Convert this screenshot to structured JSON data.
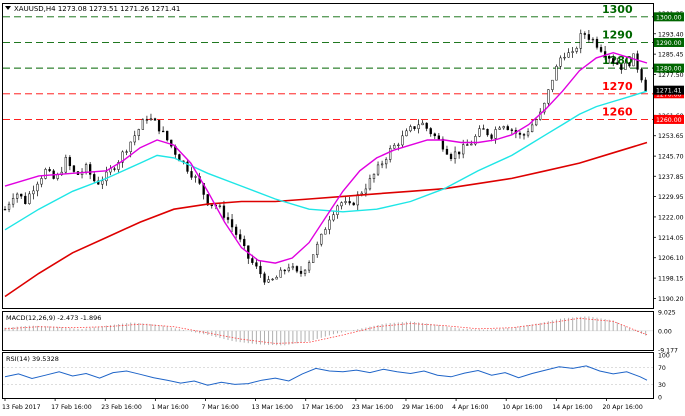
{
  "header": {
    "symbol_info": "XAUUSD,H4  1273.08 1273.51 1271.26 1271.41"
  },
  "colors": {
    "candle": "#000000",
    "ma_magenta": "#e000e0",
    "ma_cyan": "#1ee6e6",
    "ma_red": "#dd0000",
    "level_green": "#006600",
    "level_red": "#ff0000",
    "macd_hist": "#b0b0b0",
    "macd_signal": "#ff4040",
    "rsi_line": "#1e64c8",
    "price_badge": "#000000",
    "current_badge": "#ff0000"
  },
  "chart_data": [
    {
      "type": "candlestick",
      "title": "XAUUSD,H4",
      "price_axis_ticks": [
        "1301.25",
        "1293.40",
        "1285.45",
        "1277.50",
        "1269.55",
        "1261.60",
        "1253.65",
        "1245.70",
        "1237.85",
        "1229.95",
        "1222.00",
        "1214.05",
        "1206.10",
        "1198.15",
        "1190.20"
      ],
      "ylim": [
        1186.5,
        1305.0
      ],
      "time_axis_labels": [
        "13 Feb 2017",
        "17 Feb 16:00",
        "23 Feb 16:00",
        "1 Mar 16:00",
        "7 Mar 16:00",
        "13 Mar 16:00",
        "17 Mar 16:00",
        "23 Mar 16:00",
        "29 Mar 16:00",
        "4 Apr 16:00",
        "10 Apr 16:00",
        "14 Apr 16:00",
        "20 Apr 16:00"
      ],
      "levels": [
        {
          "label": "1300",
          "badge": "1300.00",
          "value": 1300.0,
          "color": "green"
        },
        {
          "label": "1290",
          "badge": "1290.00",
          "value": 1290.0,
          "color": "green"
        },
        {
          "label": "1280",
          "badge": "1280.00",
          "value": 1280.0,
          "color": "green"
        },
        {
          "label": "1270",
          "badge": "1270.00",
          "value": 1270.0,
          "color": "red"
        },
        {
          "label": "1260",
          "badge": "1260.00",
          "value": 1260.0,
          "color": "red"
        }
      ],
      "current_price": {
        "label": "1271.41",
        "value": 1271.41
      },
      "close_path": [
        [
          0,
          1225
        ],
        [
          6,
          1232
        ],
        [
          12,
          1228
        ],
        [
          18,
          1235
        ],
        [
          24,
          1240
        ],
        [
          30,
          1236
        ],
        [
          36,
          1244
        ],
        [
          42,
          1238
        ],
        [
          48,
          1241
        ],
        [
          54,
          1235
        ],
        [
          60,
          1238
        ],
        [
          66,
          1243
        ],
        [
          72,
          1249
        ],
        [
          78,
          1255
        ],
        [
          84,
          1261
        ],
        [
          90,
          1258
        ],
        [
          96,
          1252
        ],
        [
          102,
          1246
        ],
        [
          108,
          1241
        ],
        [
          114,
          1236
        ],
        [
          120,
          1228
        ],
        [
          126,
          1226
        ],
        [
          132,
          1221
        ],
        [
          138,
          1214
        ],
        [
          144,
          1206
        ],
        [
          150,
          1201
        ],
        [
          156,
          1196
        ],
        [
          162,
          1199
        ],
        [
          168,
          1203
        ],
        [
          174,
          1199
        ],
        [
          180,
          1205
        ],
        [
          186,
          1212
        ],
        [
          192,
          1222
        ],
        [
          198,
          1228
        ],
        [
          204,
          1226
        ],
        [
          210,
          1231
        ],
        [
          216,
          1236
        ],
        [
          222,
          1242
        ],
        [
          228,
          1248
        ],
        [
          234,
          1252
        ],
        [
          240,
          1256
        ],
        [
          246,
          1259
        ],
        [
          252,
          1255
        ],
        [
          258,
          1251
        ],
        [
          264,
          1246
        ],
        [
          270,
          1248
        ],
        [
          276,
          1251
        ],
        [
          282,
          1256
        ],
        [
          288,
          1254
        ],
        [
          294,
          1259
        ],
        [
          300,
          1256
        ],
        [
          306,
          1253
        ],
        [
          312,
          1258
        ],
        [
          318,
          1263
        ],
        [
          324,
          1276
        ],
        [
          330,
          1286
        ],
        [
          336,
          1285
        ],
        [
          342,
          1294
        ],
        [
          348,
          1291
        ],
        [
          354,
          1287
        ],
        [
          360,
          1283
        ],
        [
          366,
          1280
        ],
        [
          372,
          1284
        ],
        [
          376,
          1278
        ],
        [
          380,
          1271
        ]
      ],
      "ma_magenta": [
        [
          0,
          1234
        ],
        [
          20,
          1238
        ],
        [
          40,
          1239
        ],
        [
          60,
          1240
        ],
        [
          70,
          1244
        ],
        [
          80,
          1249
        ],
        [
          90,
          1252
        ],
        [
          100,
          1250
        ],
        [
          110,
          1243
        ],
        [
          120,
          1232
        ],
        [
          130,
          1220
        ],
        [
          140,
          1210
        ],
        [
          150,
          1205
        ],
        [
          160,
          1204
        ],
        [
          170,
          1206
        ],
        [
          180,
          1212
        ],
        [
          190,
          1222
        ],
        [
          200,
          1232
        ],
        [
          210,
          1240
        ],
        [
          220,
          1245
        ],
        [
          230,
          1248
        ],
        [
          240,
          1250
        ],
        [
          250,
          1252
        ],
        [
          260,
          1252
        ],
        [
          270,
          1251
        ],
        [
          280,
          1251
        ],
        [
          290,
          1252
        ],
        [
          300,
          1254
        ],
        [
          310,
          1258
        ],
        [
          320,
          1264
        ],
        [
          330,
          1271
        ],
        [
          340,
          1279
        ],
        [
          350,
          1284
        ],
        [
          360,
          1286
        ],
        [
          370,
          1284
        ],
        [
          380,
          1282
        ]
      ],
      "ma_cyan": [
        [
          0,
          1217
        ],
        [
          20,
          1225
        ],
        [
          40,
          1232
        ],
        [
          60,
          1237
        ],
        [
          80,
          1243
        ],
        [
          90,
          1246
        ],
        [
          100,
          1245
        ],
        [
          120,
          1239
        ],
        [
          140,
          1234
        ],
        [
          160,
          1229
        ],
        [
          180,
          1225
        ],
        [
          200,
          1224
        ],
        [
          220,
          1225
        ],
        [
          240,
          1228
        ],
        [
          260,
          1233
        ],
        [
          280,
          1240
        ],
        [
          300,
          1246
        ],
        [
          310,
          1250
        ],
        [
          320,
          1254
        ],
        [
          330,
          1258
        ],
        [
          340,
          1262
        ],
        [
          350,
          1265
        ],
        [
          360,
          1267
        ],
        [
          370,
          1269
        ],
        [
          380,
          1271
        ]
      ],
      "ma_red": [
        [
          0,
          1191
        ],
        [
          20,
          1200
        ],
        [
          40,
          1208
        ],
        [
          60,
          1214
        ],
        [
          80,
          1220
        ],
        [
          100,
          1225
        ],
        [
          120,
          1227
        ],
        [
          140,
          1228
        ],
        [
          160,
          1228
        ],
        [
          180,
          1229
        ],
        [
          200,
          1230
        ],
        [
          220,
          1231
        ],
        [
          240,
          1232
        ],
        [
          260,
          1233
        ],
        [
          280,
          1235
        ],
        [
          300,
          1237
        ],
        [
          320,
          1240
        ],
        [
          340,
          1243
        ],
        [
          360,
          1247
        ],
        [
          380,
          1251
        ]
      ]
    },
    {
      "type": "bar",
      "title": "MACD(12,26,9) -2.473 -1.896",
      "axis_ticks": [
        "9.025",
        "0.00",
        "-9.177"
      ],
      "ylim": [
        -9.177,
        9.025
      ],
      "histogram": [
        [
          0,
          1.5
        ],
        [
          15,
          2.5
        ],
        [
          30,
          2.0
        ],
        [
          45,
          0.8
        ],
        [
          60,
          2.5
        ],
        [
          75,
          4.0
        ],
        [
          90,
          3.0
        ],
        [
          105,
          0.5
        ],
        [
          120,
          -2.0
        ],
        [
          135,
          -5.0
        ],
        [
          150,
          -6.5
        ],
        [
          165,
          -7.0
        ],
        [
          180,
          -5.0
        ],
        [
          195,
          -1.5
        ],
        [
          210,
          1.0
        ],
        [
          225,
          3.5
        ],
        [
          240,
          4.5
        ],
        [
          255,
          3.0
        ],
        [
          270,
          1.0
        ],
        [
          285,
          0.5
        ],
        [
          300,
          1.5
        ],
        [
          315,
          3.5
        ],
        [
          330,
          6.0
        ],
        [
          345,
          7.0
        ],
        [
          360,
          5.0
        ],
        [
          370,
          1.0
        ],
        [
          380,
          -2.5
        ]
      ],
      "signal": [
        [
          0,
          1.0
        ],
        [
          20,
          2.0
        ],
        [
          40,
          1.5
        ],
        [
          60,
          2.0
        ],
        [
          80,
          3.2
        ],
        [
          100,
          2.0
        ],
        [
          120,
          -1.0
        ],
        [
          140,
          -4.0
        ],
        [
          160,
          -6.0
        ],
        [
          180,
          -5.5
        ],
        [
          200,
          -2.0
        ],
        [
          220,
          2.0
        ],
        [
          240,
          3.5
        ],
        [
          260,
          2.5
        ],
        [
          280,
          1.0
        ],
        [
          300,
          1.5
        ],
        [
          320,
          3.5
        ],
        [
          340,
          6.0
        ],
        [
          360,
          4.5
        ],
        [
          380,
          -1.9
        ]
      ]
    },
    {
      "type": "line",
      "title": "RSI(14) 39.5328",
      "axis_ticks": [
        "100",
        "70",
        "30",
        "0"
      ],
      "ylim": [
        0,
        100
      ],
      "values": [
        [
          0,
          48
        ],
        [
          8,
          55
        ],
        [
          16,
          44
        ],
        [
          24,
          52
        ],
        [
          32,
          60
        ],
        [
          40,
          50
        ],
        [
          48,
          56
        ],
        [
          56,
          45
        ],
        [
          64,
          58
        ],
        [
          72,
          62
        ],
        [
          80,
          54
        ],
        [
          88,
          46
        ],
        [
          96,
          40
        ],
        [
          104,
          33
        ],
        [
          112,
          38
        ],
        [
          120,
          28
        ],
        [
          128,
          35
        ],
        [
          136,
          30
        ],
        [
          144,
          32
        ],
        [
          152,
          40
        ],
        [
          160,
          45
        ],
        [
          168,
          38
        ],
        [
          176,
          55
        ],
        [
          184,
          68
        ],
        [
          192,
          62
        ],
        [
          200,
          60
        ],
        [
          208,
          64
        ],
        [
          216,
          58
        ],
        [
          224,
          66
        ],
        [
          232,
          60
        ],
        [
          240,
          56
        ],
        [
          248,
          62
        ],
        [
          256,
          52
        ],
        [
          264,
          48
        ],
        [
          272,
          57
        ],
        [
          280,
          63
        ],
        [
          288,
          52
        ],
        [
          296,
          58
        ],
        [
          304,
          46
        ],
        [
          312,
          56
        ],
        [
          320,
          64
        ],
        [
          328,
          72
        ],
        [
          336,
          68
        ],
        [
          344,
          74
        ],
        [
          352,
          62
        ],
        [
          360,
          55
        ],
        [
          368,
          60
        ],
        [
          376,
          48
        ],
        [
          380,
          40
        ]
      ]
    }
  ]
}
